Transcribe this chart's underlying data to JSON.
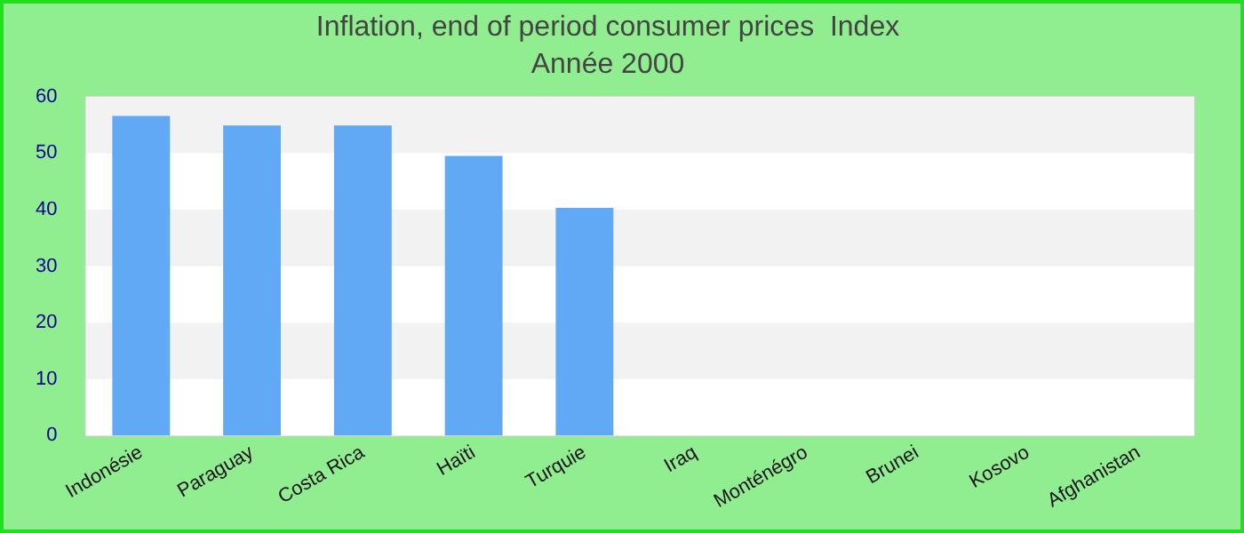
{
  "chart_data": {
    "type": "bar",
    "title": "Inflation, end of period consumer prices  Index",
    "subtitle": "Année 2000",
    "categories": [
      "Indonésie",
      "Paraguay",
      "Costa Rica",
      "Haïti",
      "Turquie",
      "Iraq",
      "Monténégro",
      "Brunei",
      "Kosovo",
      "Afghanistan"
    ],
    "values": [
      56.6,
      54.9,
      54.9,
      49.5,
      40.3,
      null,
      null,
      null,
      null,
      null
    ],
    "color": "#61a8f5",
    "ylim": [
      0,
      60
    ],
    "yticks": [
      0,
      10,
      20,
      30,
      40,
      50,
      60
    ],
    "legend": false
  }
}
